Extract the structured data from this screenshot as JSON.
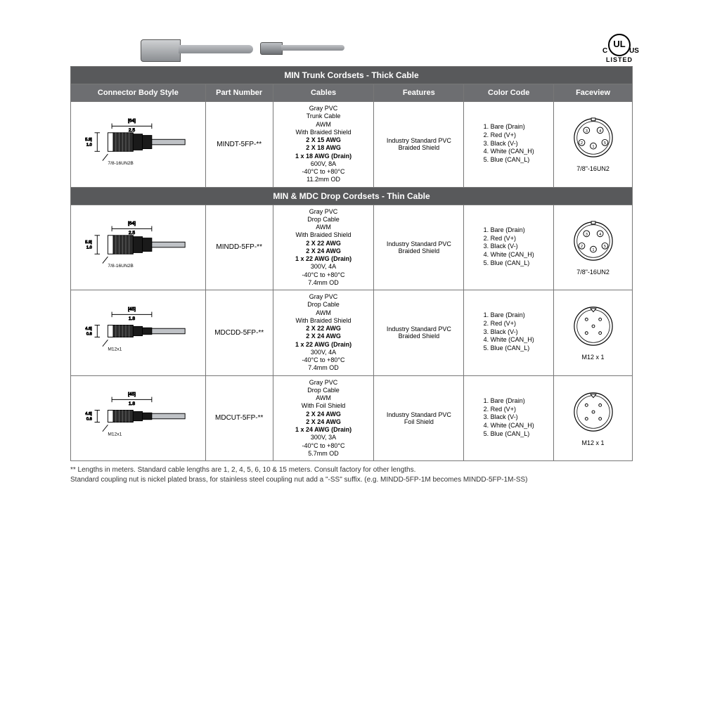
{
  "cert": {
    "mark": "UL",
    "left": "C",
    "right": "US",
    "listed": "LISTED"
  },
  "headers": {
    "body": "Connector Body Style",
    "pn": "Part Number",
    "cables": "Cables",
    "features": "Features",
    "color": "Color Code",
    "face": "Faceview"
  },
  "sections": [
    {
      "title": "MIN Trunk Cordsets - Thick Cable",
      "rows": [
        {
          "conn": {
            "len_mm": "[64]",
            "len_in": "2.5",
            "dia_mm": "[25.9]",
            "dia_in": "1.0",
            "thread": "7/8-16UN2B",
            "size": "big"
          },
          "pn": "MINDT-5FP-**",
          "cable": {
            "l1": "Gray PVC",
            "l2": "Trunk Cable",
            "l3": "AWM",
            "l4": "With Braided Shield",
            "b1": "2 X 15 AWG",
            "b2": "2 X 18 AWG",
            "b3": "1 x 18 AWG (Drain)",
            "l5": "600V, 8A",
            "l6": "-40°C to +80°C",
            "l7": "11.2mm OD"
          },
          "features": "Industry Standard PVC\nBraided Shield",
          "colors": [
            "1. Bare (Drain)",
            "2. Red (V+)",
            "3. Black (V-)",
            "4. White (CAN_H)",
            "5. Blue (CAN_L)"
          ],
          "face": "7/8\"-16UN2",
          "pinoffset": "std"
        }
      ]
    },
    {
      "title": "MIN & MDC Drop Cordsets - Thin Cable",
      "rows": [
        {
          "conn": {
            "len_mm": "[64]",
            "len_in": "2.5",
            "dia_mm": "[25.9]",
            "dia_in": "1.0",
            "thread": "7/8-16UN2B",
            "size": "big"
          },
          "pn": "MINDD-5FP-**",
          "cable": {
            "l1": "Gray PVC",
            "l2": "Drop Cable",
            "l3": "AWM",
            "l4": "With Braided Shield",
            "b1": "2 X 22 AWG",
            "b2": "2 X 24 AWG",
            "b3": "1 x 22 AWG (Drain)",
            "l5": "300V, 4A",
            "l6": "-40°C to +80°C",
            "l7": "7.4mm OD"
          },
          "features": "Industry Standard PVC\nBraided Shield",
          "colors": [
            "1. Bare (Drain)",
            "2. Red (V+)",
            "3. Black (V-)",
            "4. White (CAN_H)",
            "5. Blue (CAN_L)"
          ],
          "face": "7/8\"-16UN2",
          "pinoffset": "std"
        },
        {
          "conn": {
            "len_mm": "[45]",
            "len_in": "1.8",
            "dia_mm": "[14.6]",
            "dia_in": "0.6",
            "thread": "M12x1",
            "size": "small"
          },
          "pn": "MDCDD-5FP-**",
          "cable": {
            "l1": "Gray PVC",
            "l2": "Drop Cable",
            "l3": "AWM",
            "l4": "With Braided Shield",
            "b1": "2 X 22 AWG",
            "b2": "2 X 24 AWG",
            "b3": "1 x 22 AWG (Drain)",
            "l5": "300V, 4A",
            "l6": "-40°C to +80°C",
            "l7": "7.4mm OD"
          },
          "features": "Industry Standard PVC\nBraided Shield",
          "colors": [
            "1. Bare (Drain)",
            "2. Red (V+)",
            "3. Black (V-)",
            "4. White (CAN_H)",
            "5. Blue (CAN_L)"
          ],
          "face": "M12 x 1",
          "pinoffset": "m12"
        },
        {
          "conn": {
            "len_mm": "[45]",
            "len_in": "1.8",
            "dia_mm": "[14.6]",
            "dia_in": "0.6",
            "thread": "M12x1",
            "size": "small"
          },
          "pn": "MDCUT-5FP-**",
          "cable": {
            "l1": "Gray PVC",
            "l2": "Drop Cable",
            "l3": "AWM",
            "l4": "With Foil Shield",
            "b1": "2 X 24 AWG",
            "b2": "2 X 24 AWG",
            "b3": "1 x 24 AWG (Drain)",
            "l5": "300V, 3A",
            "l6": "-40°C to +80°C",
            "l7": "5.7mm OD"
          },
          "features": "Industry Standard PVC\nFoil Shield",
          "colors": [
            "1. Bare (Drain)",
            "2. Red (V+)",
            "3. Black (V-)",
            "4. White (CAN_H)",
            "5. Blue (CAN_L)"
          ],
          "face": "M12 x 1",
          "pinoffset": "m12"
        }
      ]
    }
  ],
  "footnotes": [
    "** Lengths in meters.  Standard cable lengths are 1, 2, 4, 5, 6, 10 & 15 meters. Consult factory for other lengths.",
    "Standard coupling nut is nickel plated brass, for stainless steel coupling nut add a \"-SS\" suffix. (e.g. MINDD-5FP-1M becomes MINDD-5FP-1M-SS)"
  ],
  "style": {
    "section_bg": "#58595b",
    "colhdr_bg": "#6d6e71",
    "hdr_fg": "#ffffff",
    "border": "#777777",
    "text": "#000000"
  }
}
